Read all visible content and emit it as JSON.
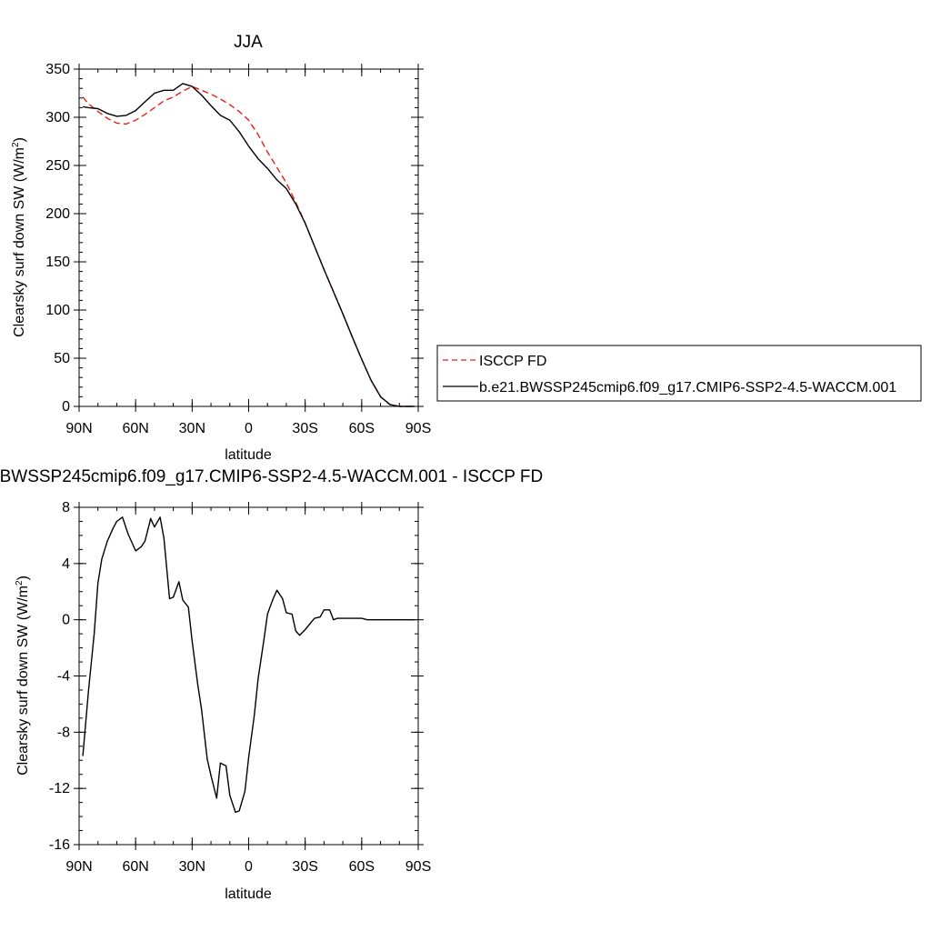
{
  "chart_data": [
    {
      "type": "line",
      "title": "JJA",
      "xlabel": "latitude",
      "ylabel": "Clearsky surf down SW (W/m",
      "ylabel_sup": "2",
      "ylabel_close": ")",
      "xlim": [
        90,
        -90
      ],
      "ylim": [
        0,
        350
      ],
      "xticks": [
        {
          "value": 90,
          "label": "90N"
        },
        {
          "value": 60,
          "label": "60N"
        },
        {
          "value": 30,
          "label": "30N"
        },
        {
          "value": 0,
          "label": "0"
        },
        {
          "value": -30,
          "label": "30S"
        },
        {
          "value": -60,
          "label": "60S"
        },
        {
          "value": -90,
          "label": "90S"
        }
      ],
      "yticks": [
        0,
        50,
        100,
        150,
        200,
        250,
        300,
        350
      ],
      "legend_placement": "right",
      "series": [
        {
          "name": "ISCCP FD",
          "color": "#e8201b",
          "dash": "dashed",
          "x": [
            88,
            85,
            80,
            75,
            70,
            65,
            60,
            55,
            50,
            45,
            40,
            35,
            30,
            25,
            20,
            15,
            10,
            5,
            0,
            -5,
            -10,
            -15,
            -20,
            -25,
            -30,
            -35,
            -40,
            -45,
            -50,
            -55,
            -60,
            -65,
            -70,
            -75,
            -80,
            -85,
            -88
          ],
          "y": [
            321,
            314,
            306,
            299,
            294,
            293,
            297,
            303,
            310,
            317,
            321,
            327,
            332,
            328,
            324,
            319,
            313,
            306,
            297,
            282,
            264,
            248,
            232,
            212,
            190,
            166,
            142,
            119,
            96,
            72,
            49,
            27,
            10,
            2,
            0,
            0,
            0
          ]
        },
        {
          "name": "b.e21.BWSSP245cmip6.f09_g17.CMIP6-SSP2-4.5-WACCM.001",
          "color": "#000000",
          "dash": "solid",
          "x": [
            88,
            85,
            80,
            75,
            70,
            65,
            60,
            55,
            50,
            45,
            40,
            35,
            30,
            25,
            20,
            15,
            10,
            5,
            0,
            -5,
            -10,
            -15,
            -20,
            -25,
            -30,
            -35,
            -40,
            -45,
            -50,
            -55,
            -60,
            -65,
            -70,
            -75,
            -80,
            -85,
            -88
          ],
          "y": [
            311,
            310,
            309,
            304,
            301,
            302,
            307,
            316,
            325,
            328,
            328,
            335,
            332,
            323,
            312,
            302,
            297,
            285,
            270,
            257,
            247,
            235,
            226,
            210,
            190,
            166,
            142,
            119,
            96,
            72,
            49,
            27,
            10,
            2,
            0,
            0,
            0
          ]
        }
      ]
    },
    {
      "type": "line",
      "title": "b.e21.BWSSP245cmip6.f09_g17.CMIP6-SSP2-4.5-WACCM.001 - ISCCP FD",
      "xlabel": "latitude",
      "ylabel": "Clearsky surf down SW (W/m",
      "ylabel_sup": "2",
      "ylabel_close": ")",
      "xlim": [
        90,
        -90
      ],
      "ylim": [
        -16,
        8
      ],
      "xticks": [
        {
          "value": 90,
          "label": "90N"
        },
        {
          "value": 60,
          "label": "60N"
        },
        {
          "value": 30,
          "label": "30N"
        },
        {
          "value": 0,
          "label": "0"
        },
        {
          "value": -30,
          "label": "30S"
        },
        {
          "value": -60,
          "label": "60S"
        },
        {
          "value": -90,
          "label": "90S"
        }
      ],
      "yticks": [
        8,
        4,
        0,
        -4,
        -8,
        -12,
        -16
      ],
      "series": [
        {
          "color": "#000000",
          "dash": "solid",
          "x": [
            88,
            85,
            82,
            80,
            78,
            75,
            72,
            70,
            67,
            64,
            60,
            57,
            55,
            52,
            50,
            47,
            45,
            42,
            40,
            37,
            35,
            32,
            30,
            27,
            25,
            22,
            20,
            17,
            15,
            12,
            10,
            7,
            5,
            2,
            0,
            -3,
            -5,
            -8,
            -10,
            -13,
            -15,
            -18,
            -20,
            -23,
            -25,
            -27,
            -30,
            -33,
            -35,
            -38,
            -40,
            -43,
            -45,
            -47,
            -50,
            -53,
            -55,
            -57,
            -60,
            -63,
            -65,
            -67,
            -70,
            -73,
            -75,
            -77,
            -80,
            -83,
            -85,
            -88
          ],
          "y": [
            -9.7,
            -5,
            -1,
            2.6,
            4.3,
            5.6,
            6.5,
            7.0,
            7.3,
            6.1,
            4.9,
            5.2,
            5.6,
            7.2,
            6.6,
            7.3,
            5.8,
            1.5,
            1.6,
            2.7,
            1.4,
            0.9,
            -1.5,
            -4.6,
            -6.4,
            -9.9,
            -11.1,
            -12.7,
            -10.2,
            -10.4,
            -12.5,
            -13.7,
            -13.6,
            -12.2,
            -9.8,
            -6.8,
            -4.2,
            -1.5,
            0.4,
            1.5,
            2.1,
            1.5,
            0.5,
            0.4,
            -0.8,
            -1.1,
            -0.7,
            -0.2,
            0.1,
            0.2,
            0.7,
            0.7,
            0,
            0.1,
            0.1,
            0.1,
            0.1,
            0.1,
            0.1,
            0,
            0,
            0,
            0,
            0,
            0,
            0,
            0,
            0,
            0,
            0
          ]
        }
      ]
    }
  ]
}
